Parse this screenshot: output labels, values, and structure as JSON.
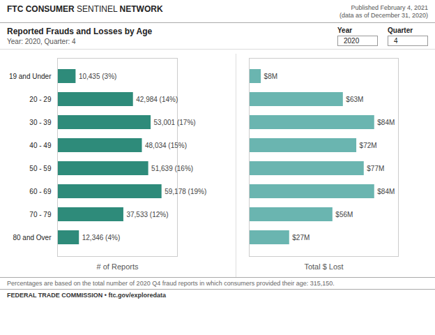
{
  "title": "Reported Frauds and Losses by Age",
  "subtitle": "Year: 2020, Quarter: 4",
  "annotations": [
    "FTC CONSUMER ",
    "SENTINEL ",
    "NETWORK",
    "Published February 4, 2021",
    "(data as of December 31, 2020)",
    "Year",
    "2020",
    "Quarter",
    "4",
    "Percentages are based on the total number of 2020 Q4 fraud reports in which consumers provided their age: 315,150.",
    "FEDERAL TRADE COMMISSION • ftc.gov/exploredata"
  ],
  "chart_data": [
    {
      "type": "bar",
      "orientation": "horizontal",
      "xlabel": "# of Reports",
      "categories": [
        "19 and Under",
        "20 - 29",
        "30 - 39",
        "40 - 49",
        "50 - 59",
        "60 - 69",
        "70 - 79",
        "80 and Over"
      ],
      "values": [
        10435,
        42984,
        53001,
        48034,
        51639,
        59178,
        37533,
        12346
      ],
      "value_labels": [
        "10,435 (3%)",
        "42,984 (14%)",
        "53,001 (17%)",
        "48,034 (15%)",
        "51,639 (16%)",
        "59,178 (19%)",
        "37,533 (12%)",
        "12,346 (4%)"
      ],
      "data_labels": true,
      "color": "#2e8b7a",
      "xlim": [
        0,
        68000
      ],
      "grid": false,
      "tick_labels": "y"
    },
    {
      "type": "bar",
      "orientation": "horizontal",
      "xlabel": "Total $ Lost",
      "categories": [
        "19 and Under",
        "20 - 29",
        "30 - 39",
        "40 - 49",
        "50 - 59",
        "60 - 69",
        "70 - 79",
        "80 and Over"
      ],
      "values": [
        8,
        63,
        84,
        72,
        77,
        84,
        56,
        27
      ],
      "value_labels": [
        "$8M",
        "$63M",
        "$84M",
        "$72M",
        "$77M",
        "$84M",
        "$56M",
        "$27M"
      ],
      "data_labels": true,
      "color": "#6ab5b0",
      "xlim": [
        0,
        100
      ],
      "grid": false,
      "tick_labels": false
    }
  ]
}
